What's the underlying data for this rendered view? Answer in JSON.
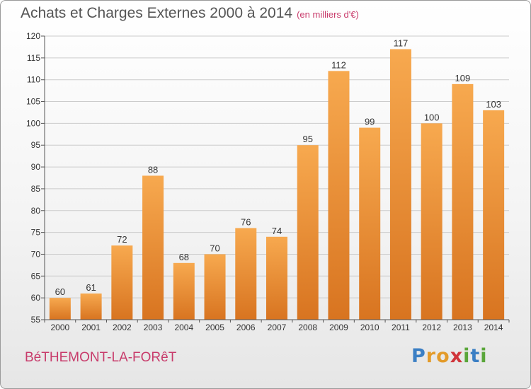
{
  "header": {
    "title": "Achats et Charges Externes 2000 à 2014",
    "subtitle": "(en milliers d'€)"
  },
  "footer": {
    "location": "BéTHEMONT-LA-FORêT",
    "brand": {
      "letters": [
        "P",
        "r",
        "o",
        "x",
        "i",
        "t",
        "i"
      ],
      "colors": [
        "#3b7fc4",
        "#e39b2a",
        "#e39b2a",
        "#d0343a",
        "#5aa63a",
        "#3b7fc4",
        "#5aa63a"
      ]
    }
  },
  "colors": {
    "bar_top": "#f7a94f",
    "bar_bottom": "#d87420",
    "grid": "#cccccc",
    "axis": "#555555",
    "text": "#333333"
  },
  "chart_data": {
    "type": "bar",
    "categories": [
      "2000",
      "2001",
      "2002",
      "2003",
      "2004",
      "2005",
      "2006",
      "2007",
      "2008",
      "2009",
      "2010",
      "2011",
      "2012",
      "2013",
      "2014"
    ],
    "values": [
      60,
      61,
      72,
      88,
      68,
      70,
      76,
      74,
      95,
      112,
      99,
      117,
      100,
      109,
      103
    ],
    "ylim": [
      55,
      120
    ],
    "yticks": [
      55,
      60,
      65,
      70,
      75,
      80,
      85,
      90,
      95,
      100,
      105,
      110,
      115,
      120
    ],
    "grid": true,
    "data_labels": true
  }
}
